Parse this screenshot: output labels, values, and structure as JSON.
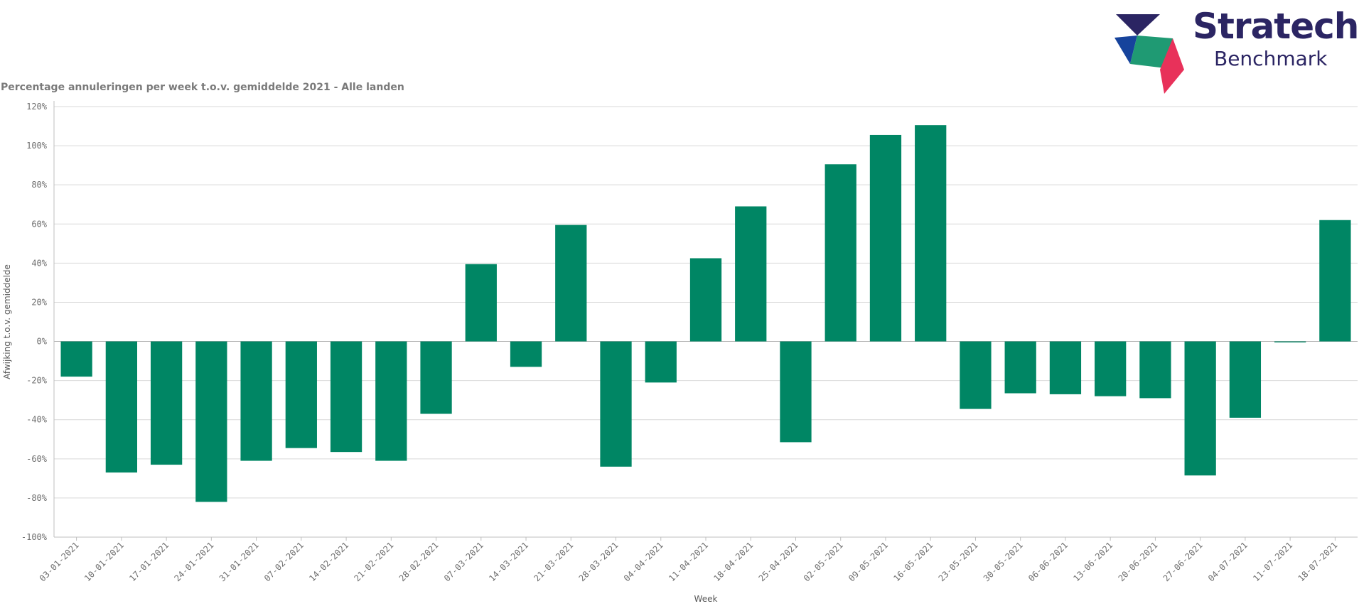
{
  "logo": {
    "word1": "Stratech",
    "word2": "Benchmark",
    "colors": {
      "navy": "#2b2563",
      "blue": "#16439c",
      "green": "#1f9a73",
      "red": "#e8315a"
    }
  },
  "chart_data": {
    "type": "bar",
    "title": "Percentage annuleringen per week t.o.v. gemiddelde 2021 - Alle landen",
    "xlabel": "Week",
    "ylabel": "Afwijking t.o.v. gemiddelde",
    "ylim": [
      -100,
      120
    ],
    "yticks": [
      120,
      100,
      80,
      60,
      40,
      20,
      0,
      -20,
      -40,
      -60,
      -80,
      -100
    ],
    "ytick_labels": [
      "120%",
      "100%",
      "80%",
      "60%",
      "40%",
      "20%",
      "0%",
      "-20%",
      "-40%",
      "-60%",
      "-80%",
      "-100%"
    ],
    "grid": true,
    "bar_color": "#008664",
    "categories": [
      "03-01-2021",
      "10-01-2021",
      "17-01-2021",
      "24-01-2021",
      "31-01-2021",
      "07-02-2021",
      "14-02-2021",
      "21-02-2021",
      "28-02-2021",
      "07-03-2021",
      "14-03-2021",
      "21-03-2021",
      "28-03-2021",
      "04-04-2021",
      "11-04-2021",
      "18-04-2021",
      "25-04-2021",
      "02-05-2021",
      "09-05-2021",
      "16-05-2021",
      "23-05-2021",
      "30-05-2021",
      "06-06-2021",
      "13-06-2021",
      "20-06-2021",
      "27-06-2021",
      "04-07-2021",
      "11-07-2021",
      "18-07-2021"
    ],
    "values": [
      -18,
      -67,
      -63,
      -82,
      -61,
      -54.5,
      -56.5,
      -61,
      -37,
      39.5,
      -13,
      59.5,
      -64,
      -21,
      42.5,
      69,
      -51.5,
      90.5,
      105.5,
      110.5,
      -34.5,
      -26.5,
      -27,
      -28,
      -29,
      -68.5,
      -39,
      -0.5,
      62
    ]
  }
}
